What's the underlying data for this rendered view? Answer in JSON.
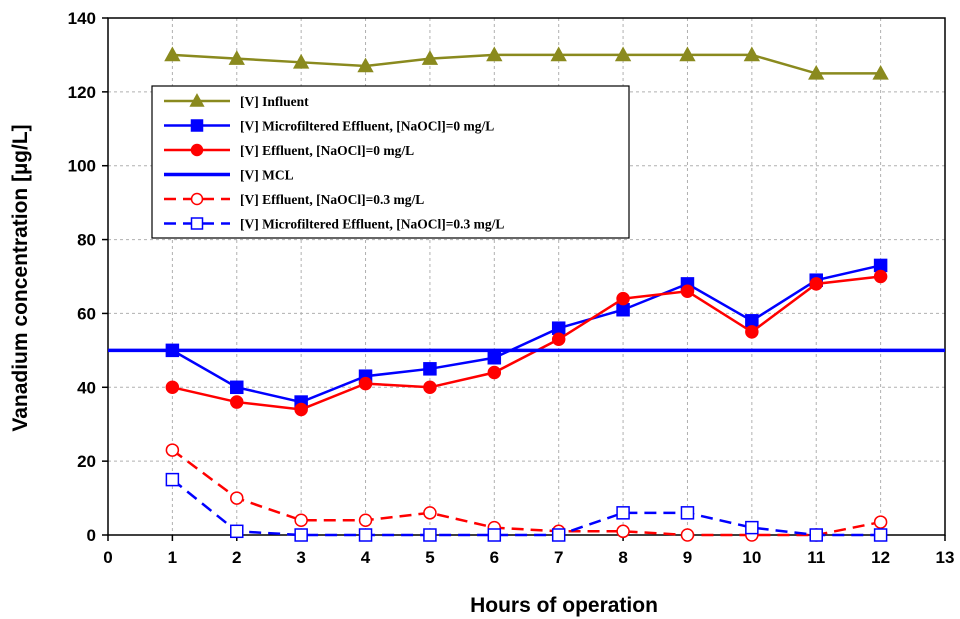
{
  "chart_data": {
    "type": "line",
    "xlabel": "Hours of operation",
    "ylabel": "Vanadium concentration [µg/L]",
    "xlim": [
      0,
      13
    ],
    "ylim": [
      0,
      140
    ],
    "xticks": [
      0,
      1,
      2,
      3,
      4,
      5,
      6,
      7,
      8,
      9,
      10,
      11,
      12,
      13
    ],
    "yticks": [
      0,
      20,
      40,
      60,
      80,
      100,
      120,
      140
    ],
    "grid": true,
    "legend_position": "top-center",
    "series": [
      {
        "name": "[V] Influent",
        "color": "#8a8a1e",
        "marker": "triangle",
        "filled": true,
        "dashed": false,
        "x": [
          1,
          2,
          3,
          4,
          5,
          6,
          7,
          8,
          9,
          10,
          11,
          12
        ],
        "y": [
          130,
          129,
          128,
          127,
          129,
          130,
          130,
          130,
          130,
          130,
          125,
          125
        ]
      },
      {
        "name": "[V] Microfiltered Effluent, [NaOCl]=0 mg/L",
        "color": "#0000ff",
        "marker": "square",
        "filled": true,
        "dashed": false,
        "x": [
          1,
          2,
          3,
          4,
          5,
          6,
          7,
          8,
          9,
          10,
          11,
          12
        ],
        "y": [
          50,
          40,
          36,
          43,
          45,
          48,
          56,
          61,
          68,
          58,
          69,
          73
        ]
      },
      {
        "name": "[V] Effluent, [NaOCl]=0 mg/L",
        "color": "#ff0000",
        "marker": "circle",
        "filled": true,
        "dashed": false,
        "x": [
          1,
          2,
          3,
          4,
          5,
          6,
          7,
          8,
          9,
          10,
          11,
          12
        ],
        "y": [
          40,
          36,
          34,
          41,
          40,
          44,
          53,
          64,
          66,
          55,
          68,
          70
        ]
      },
      {
        "name": "[V] MCL",
        "color": "#0000ff",
        "marker": "none",
        "filled": false,
        "dashed": false,
        "constant": 50
      },
      {
        "name": "[V] Effluent, [NaOCl]=0.3 mg/L",
        "color": "#ff0000",
        "marker": "circle",
        "filled": false,
        "dashed": true,
        "x": [
          1,
          2,
          3,
          4,
          5,
          6,
          7,
          8,
          9,
          10,
          11,
          12
        ],
        "y": [
          23,
          10,
          4,
          4,
          6,
          2,
          1,
          1,
          0,
          0,
          0,
          3.5
        ]
      },
      {
        "name": "[V] Microfiltered Effluent, [NaOCl]=0.3 mg/L",
        "color": "#0000ff",
        "marker": "square",
        "filled": false,
        "dashed": true,
        "x": [
          1,
          2,
          3,
          4,
          5,
          6,
          7,
          8,
          9,
          10,
          11,
          12
        ],
        "y": [
          15,
          1,
          0,
          0,
          0,
          0,
          0,
          6,
          6,
          2,
          0,
          0
        ]
      }
    ]
  }
}
